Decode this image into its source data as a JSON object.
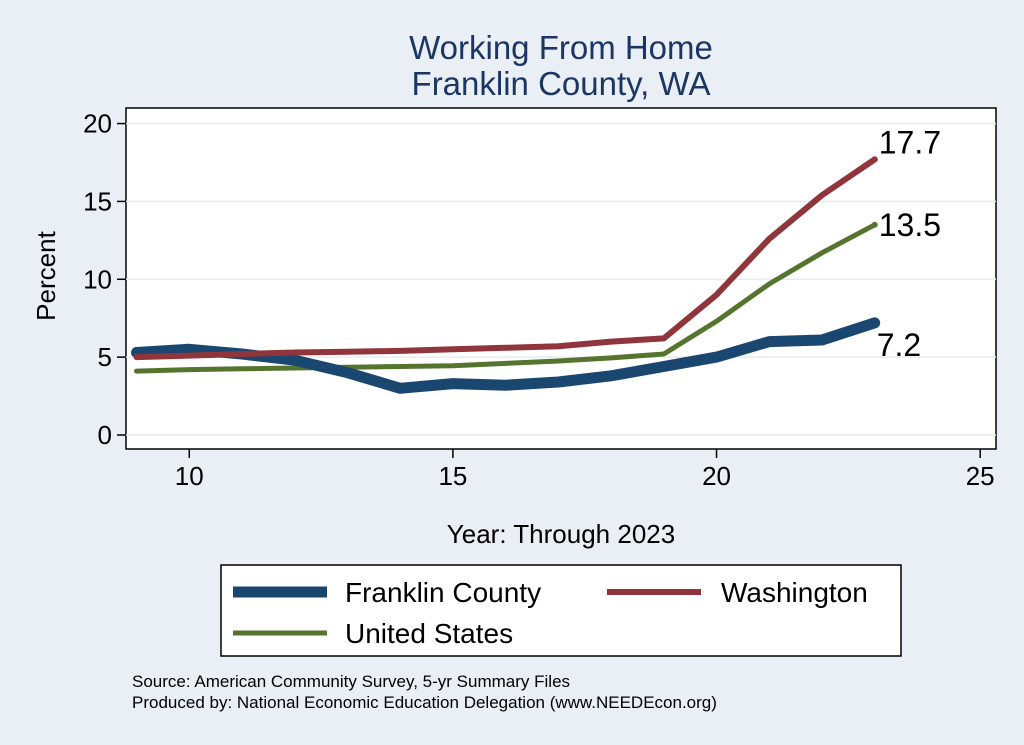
{
  "chart_data": {
    "type": "line",
    "title": [
      "Working From Home",
      "Franklin County, WA"
    ],
    "xlabel": "Year: Through 2023",
    "ylabel": "Percent",
    "xlim": [
      8.8,
      25.3
    ],
    "ylim": [
      -0.9,
      21
    ],
    "xticks": [
      10,
      15,
      20,
      25
    ],
    "yticks": [
      0,
      5,
      10,
      15,
      20
    ],
    "grid": true,
    "legend_position": "bottom",
    "x": [
      9,
      10,
      11,
      12,
      13,
      14,
      15,
      16,
      17,
      18,
      19,
      20,
      21,
      22,
      23
    ],
    "series": [
      {
        "name": "Franklin County",
        "color": "#1a476f",
        "stroke": 11,
        "values": [
          5.3,
          5.5,
          5.2,
          4.8,
          4.0,
          3.0,
          3.3,
          3.2,
          3.4,
          3.8,
          4.4,
          5.0,
          6.0,
          6.1,
          7.2
        ],
        "end_label": "7.2",
        "label_pos": "below"
      },
      {
        "name": "Washington",
        "color": "#90353b",
        "stroke": 6,
        "values": [
          5.0,
          5.1,
          5.2,
          5.3,
          5.35,
          5.4,
          5.5,
          5.6,
          5.7,
          6.0,
          6.2,
          9.0,
          12.6,
          15.4,
          17.7
        ],
        "end_label": "17.7",
        "label_pos": "above"
      },
      {
        "name": "United States",
        "color": "#55752f",
        "stroke": 5,
        "values": [
          4.1,
          4.2,
          4.25,
          4.3,
          4.35,
          4.4,
          4.45,
          4.6,
          4.75,
          4.95,
          5.2,
          7.3,
          9.7,
          11.7,
          13.5
        ],
        "end_label": "13.5",
        "label_pos": "right"
      }
    ],
    "notes": [
      "Source: American Community Survey, 5-yr Summary Files",
      "Produced by: National Economic Education Delegation (www.NEEDEcon.org)"
    ]
  },
  "colors": {
    "background": "#e9eff5",
    "plot_background": "#ffffff",
    "title": "#1c3664",
    "grid": "#e5ecf2"
  }
}
